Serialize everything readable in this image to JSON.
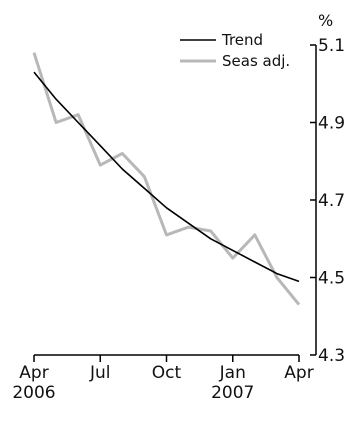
{
  "chart_data": {
    "type": "line",
    "title": "",
    "ylabel": "%",
    "xlabel": "",
    "ylim": [
      4.3,
      5.1
    ],
    "yticks": [
      4.3,
      4.5,
      4.7,
      4.9,
      5.1
    ],
    "y_tick_labels": [
      "4.3",
      "4.5",
      "4.7",
      "4.9",
      "5.1"
    ],
    "x": [
      "2006-04",
      "2006-05",
      "2006-06",
      "2006-07",
      "2006-08",
      "2006-09",
      "2006-10",
      "2006-11",
      "2006-12",
      "2007-01",
      "2007-02",
      "2007-03",
      "2007-04"
    ],
    "x_tick_labels": [
      {
        "month": "Apr",
        "year": "2006"
      },
      {
        "month": "Jul",
        "year": ""
      },
      {
        "month": "Oct",
        "year": ""
      },
      {
        "month": "Jan",
        "year": "2007"
      },
      {
        "month": "Apr",
        "year": ""
      }
    ],
    "series": [
      {
        "name": "Trend",
        "color": "#000000",
        "values": [
          5.03,
          4.96,
          4.9,
          4.84,
          4.78,
          4.73,
          4.68,
          4.64,
          4.6,
          4.57,
          4.54,
          4.51,
          4.49
        ]
      },
      {
        "name": "Seas adj.",
        "color": "#b8b8b8",
        "values": [
          5.08,
          4.9,
          4.92,
          4.79,
          4.82,
          4.76,
          4.61,
          4.63,
          4.62,
          4.55,
          4.61,
          4.5,
          4.43
        ]
      }
    ],
    "legend_position": "top-right",
    "grid": false
  }
}
